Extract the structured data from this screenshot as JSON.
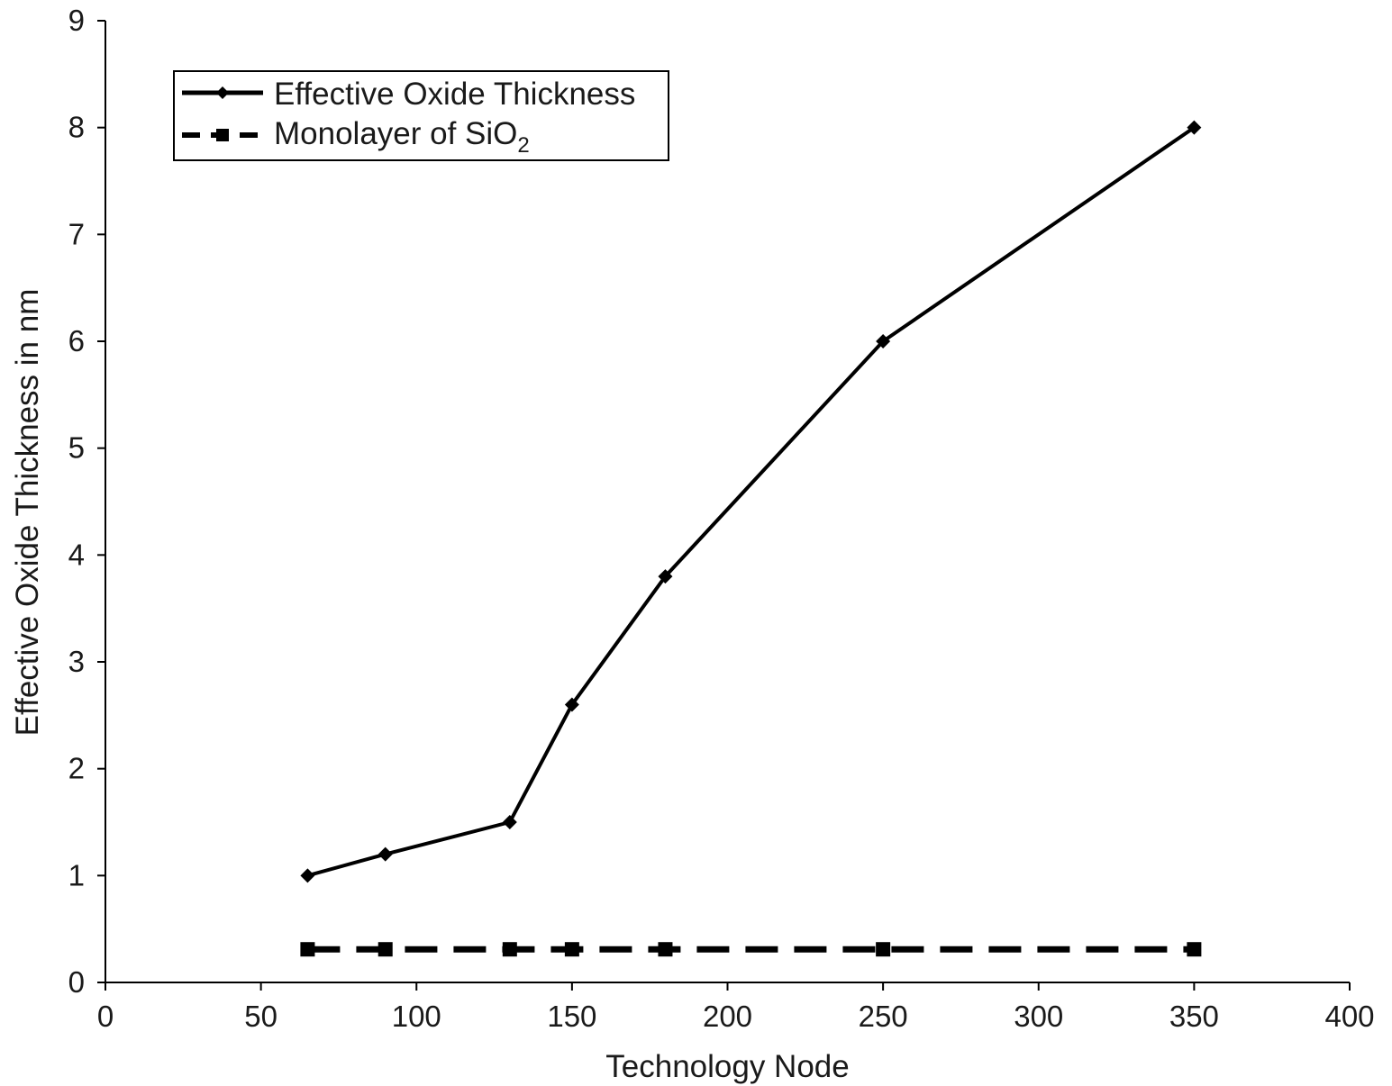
{
  "chart_data": {
    "type": "line",
    "title": "",
    "xlabel": "Technology Node",
    "ylabel": "Effective Oxide Thickness in nm",
    "xlim": [
      0,
      400
    ],
    "ylim": [
      0,
      9
    ],
    "xticks": [
      0,
      50,
      100,
      150,
      200,
      250,
      300,
      350,
      400
    ],
    "yticks": [
      0,
      1,
      2,
      3,
      4,
      5,
      6,
      7,
      8,
      9
    ],
    "grid": false,
    "legend_position": "top-left",
    "series": [
      {
        "name": "Effective Oxide Thickness",
        "line_style": "solid",
        "marker": "diamond",
        "color": "#000000",
        "x": [
          65,
          90,
          130,
          150,
          180,
          250,
          350
        ],
        "y": [
          1.0,
          1.2,
          1.5,
          2.6,
          3.8,
          6.0,
          8.0
        ]
      },
      {
        "name": "Monolayer of SiO",
        "name_subscript": "2",
        "line_style": "dashed",
        "marker": "square",
        "color": "#000000",
        "x": [
          65,
          90,
          130,
          150,
          180,
          250,
          350
        ],
        "y": [
          0.31,
          0.31,
          0.31,
          0.31,
          0.31,
          0.31,
          0.31
        ]
      }
    ]
  }
}
